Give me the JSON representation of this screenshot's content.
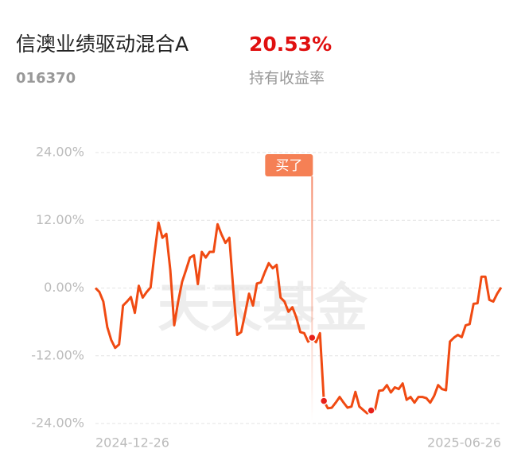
{
  "header": {
    "title": "信澳业绩驱动混合A",
    "code": "016370",
    "return": "20.53%",
    "return_label": "持有收益率"
  },
  "chart_data": {
    "type": "line",
    "watermark": "天天基金",
    "annotation": {
      "text": "买了",
      "index": 55
    },
    "marker_points": [
      55,
      58,
      70
    ],
    "categories": [
      "2024-12-26",
      null,
      null,
      null,
      null,
      null,
      null,
      null,
      null,
      null,
      null,
      null,
      null,
      null,
      null,
      null,
      null,
      null,
      null,
      null,
      null,
      null,
      null,
      null,
      null,
      null,
      null,
      null,
      null,
      null,
      null,
      null,
      null,
      null,
      null,
      null,
      null,
      null,
      null,
      null,
      null,
      null,
      null,
      null,
      null,
      null,
      null,
      null,
      null,
      null,
      null,
      null,
      null,
      null,
      null,
      null,
      null,
      null,
      null,
      null,
      null,
      null,
      null,
      null,
      null,
      null,
      null,
      null,
      null,
      null,
      null,
      null,
      null,
      null,
      null,
      null,
      null,
      null,
      null,
      null,
      null,
      null,
      null,
      null,
      null,
      null,
      null,
      null,
      null,
      null,
      null,
      null,
      null,
      null,
      null,
      null,
      null,
      null,
      null,
      null,
      null,
      null,
      null,
      "2025-06-26"
    ],
    "series": [
      {
        "color": "#f04a12",
        "values": [
          0,
          -0.7,
          -2.4,
          -6.9,
          -9.2,
          -10.6,
          -10.0,
          -3.1,
          -2.4,
          -1.6,
          -4.4,
          0.4,
          -1.7,
          -0.7,
          0.1,
          6.1,
          11.6,
          8.9,
          9.6,
          3.2,
          -6.6,
          -2.4,
          1.1,
          3.2,
          5.4,
          5.8,
          0.7,
          6.4,
          5.4,
          6.4,
          6.4,
          11.3,
          9.5,
          8.0,
          8.9,
          -0.3,
          -8.3,
          -7.8,
          -4.5,
          -1.0,
          -3.1,
          0.8,
          1.0,
          2.8,
          4.4,
          3.5,
          4.1,
          -1.7,
          -2.4,
          -4.2,
          -3.4,
          -5.2,
          -7.8,
          -8.0,
          -9.5,
          -8.8,
          -9.6,
          -8.0,
          -20.0,
          -21.3,
          -21.2,
          -20.3,
          -19.3,
          -20.3,
          -21.2,
          -21.0,
          -18.4,
          -21.0,
          -21.6,
          -22.2,
          -21.7,
          -21.5,
          -18.2,
          -18.1,
          -17.2,
          -18.5,
          -17.6,
          -17.9,
          -16.9,
          -19.8,
          -19.3,
          -20.3,
          -19.3,
          -19.3,
          -19.5,
          -20.3,
          -19.1,
          -17.2,
          -17.9,
          -18.1,
          -9.5,
          -8.8,
          -8.3,
          -8.7,
          -6.6,
          -6.4,
          -2.8,
          -2.7,
          2.0,
          2.0,
          -2.1,
          -2.4,
          -1.0,
          0.1
        ]
      }
    ],
    "ylim": [
      -24,
      24
    ],
    "yticks": [
      {
        "value": 24,
        "label": "24.00%"
      },
      {
        "value": 12,
        "label": "12.00%"
      },
      {
        "value": 0,
        "label": "0.00%"
      },
      {
        "value": -12,
        "label": "-12.00%"
      },
      {
        "value": -24,
        "label": "-24.00%"
      }
    ],
    "grid": true
  }
}
